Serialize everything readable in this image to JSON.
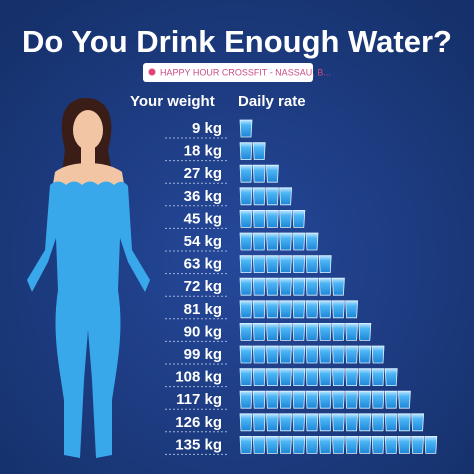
{
  "header": {
    "title": "Do You Drink Enough Water?",
    "location": "HAPPY HOUR CROSSFIT - NASSAU, B..."
  },
  "table": {
    "columns": [
      "Your weight",
      "Daily rate"
    ],
    "rows": [
      {
        "weight": "9 kg",
        "glasses": 1
      },
      {
        "weight": "18 kg",
        "glasses": 2
      },
      {
        "weight": "27 kg",
        "glasses": 3
      },
      {
        "weight": "36 kg",
        "glasses": 4
      },
      {
        "weight": "45 kg",
        "glasses": 5
      },
      {
        "weight": "54 kg",
        "glasses": 6
      },
      {
        "weight": "63 kg",
        "glasses": 7
      },
      {
        "weight": "72 kg",
        "glasses": 8
      },
      {
        "weight": "81 kg",
        "glasses": 9
      },
      {
        "weight": "90 kg",
        "glasses": 10
      },
      {
        "weight": "99 kg",
        "glasses": 11
      },
      {
        "weight": "108 kg",
        "glasses": 12
      },
      {
        "weight": "117 kg",
        "glasses": 13
      },
      {
        "weight": "126 kg",
        "glasses": 14
      },
      {
        "weight": "135 kg",
        "glasses": 15
      }
    ]
  }
}
